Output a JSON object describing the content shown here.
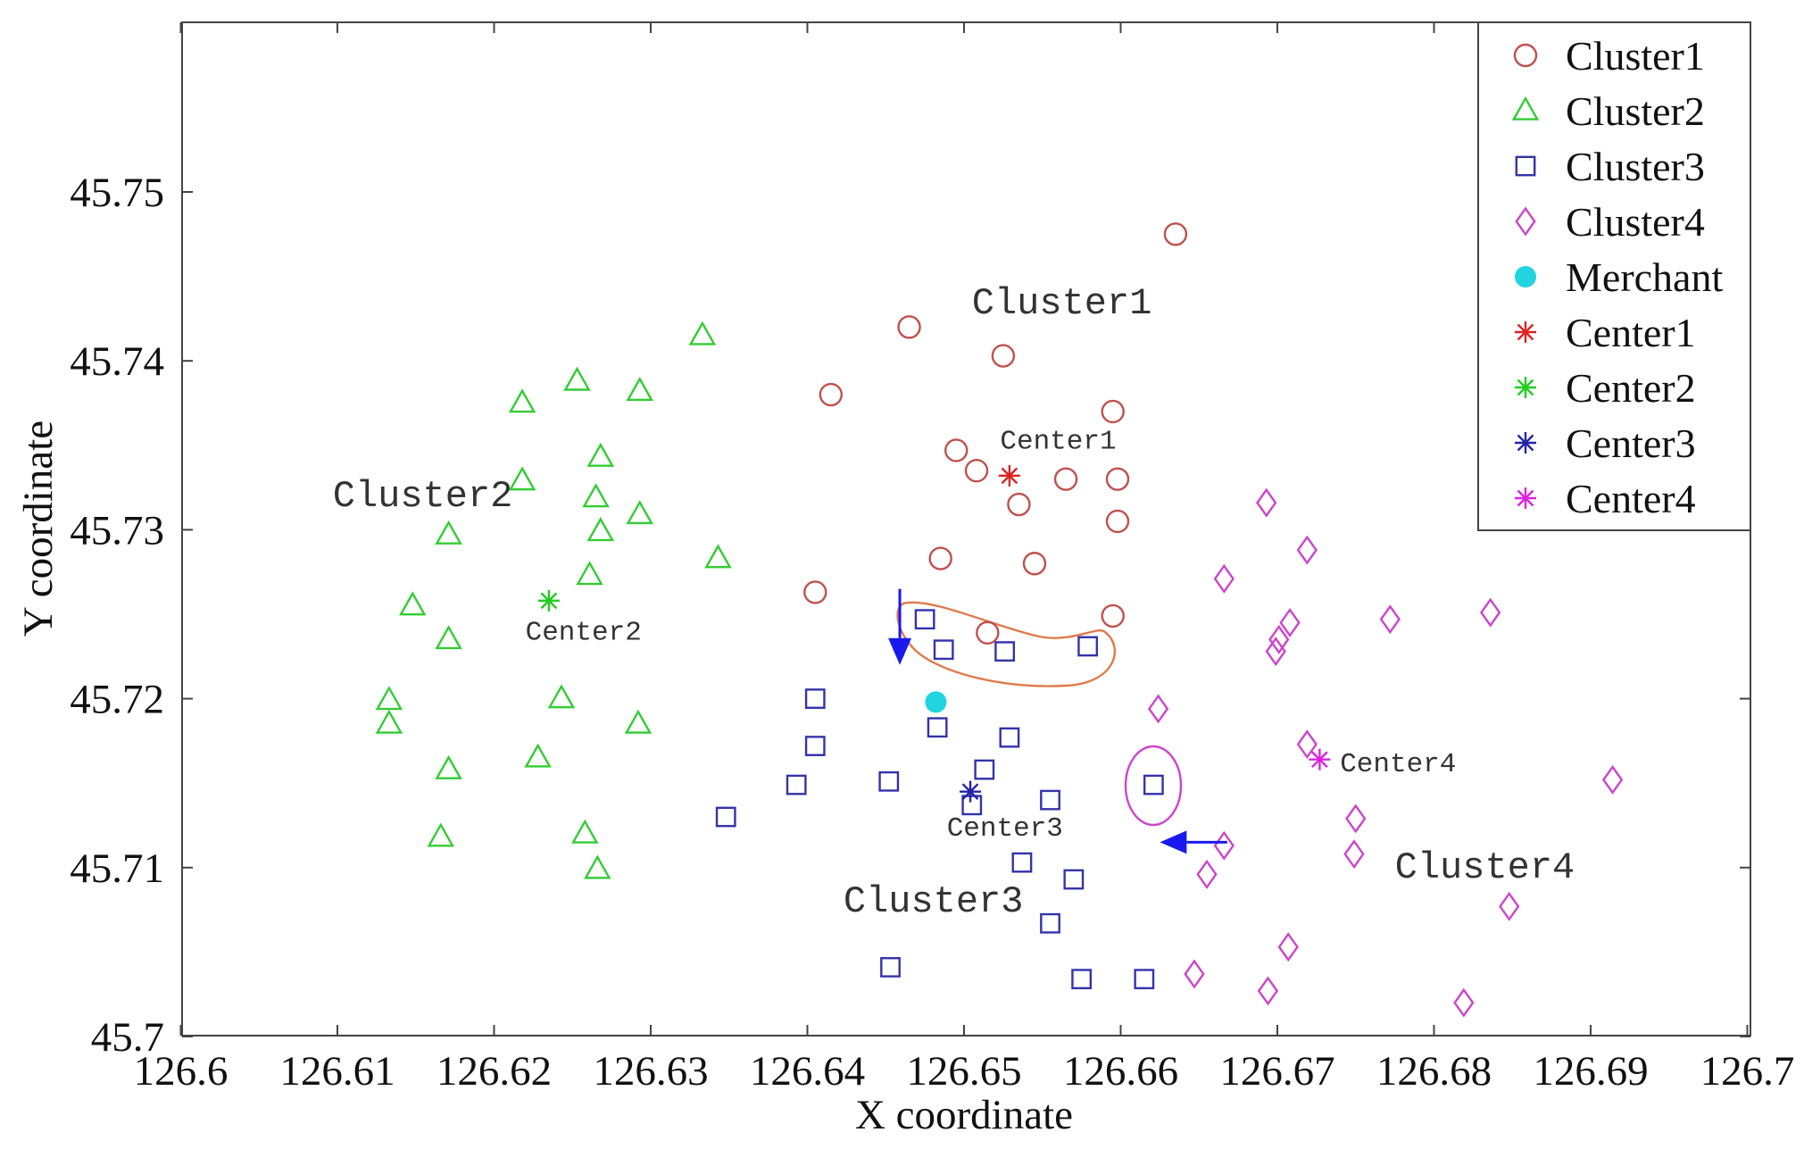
{
  "chart_data": {
    "type": "scatter",
    "title": "",
    "xlabel": "X coordinate",
    "ylabel": "Y coordinate",
    "xlim": [
      126.6,
      126.7
    ],
    "ylim": [
      45.7,
      45.76
    ],
    "xticks": [
      126.6,
      126.61,
      126.62,
      126.63,
      126.64,
      126.65,
      126.66,
      126.67,
      126.68,
      126.69,
      126.7
    ],
    "xtick_labels": [
      "126.6",
      "126.61",
      "126.62",
      "126.63",
      "126.64",
      "126.65",
      "126.66",
      "126.67",
      "126.68",
      "126.69",
      "126.7"
    ],
    "yticks": [
      45.7,
      45.71,
      45.72,
      45.73,
      45.74,
      45.75
    ],
    "ytick_labels": [
      "45.7",
      "45.71",
      "45.72",
      "45.73",
      "45.74",
      "45.75"
    ],
    "grid": false,
    "legend_position": "top-right",
    "series": [
      {
        "name": "Cluster1",
        "marker": "circle",
        "color": "#c0504d",
        "points": [
          [
            126.6635,
            45.7475
          ],
          [
            126.6465,
            45.742
          ],
          [
            126.6525,
            45.7403
          ],
          [
            126.6415,
            45.738
          ],
          [
            126.6595,
            45.737
          ],
          [
            126.6495,
            45.7347
          ],
          [
            126.6508,
            45.7335
          ],
          [
            126.6565,
            45.733
          ],
          [
            126.6598,
            45.733
          ],
          [
            126.6535,
            45.7315
          ],
          [
            126.6598,
            45.7305
          ],
          [
            126.6485,
            45.7283
          ],
          [
            126.6545,
            45.728
          ],
          [
            126.6405,
            45.7263
          ],
          [
            126.6595,
            45.7249
          ],
          [
            126.6515,
            45.7239
          ]
        ]
      },
      {
        "name": "Cluster2",
        "marker": "triangle",
        "color": "#33cc33",
        "points": [
          [
            126.6333,
            45.7415
          ],
          [
            126.6253,
            45.7388
          ],
          [
            126.6293,
            45.7382
          ],
          [
            126.6218,
            45.7375
          ],
          [
            126.6268,
            45.7343
          ],
          [
            126.6218,
            45.7329
          ],
          [
            126.6265,
            45.7319
          ],
          [
            126.6293,
            45.7309
          ],
          [
            126.6268,
            45.7299
          ],
          [
            126.6171,
            45.7297
          ],
          [
            126.6343,
            45.7283
          ],
          [
            126.6261,
            45.7273
          ],
          [
            126.6148,
            45.7255
          ],
          [
            126.6171,
            45.7235
          ],
          [
            126.6133,
            45.7199
          ],
          [
            126.6243,
            45.72
          ],
          [
            126.6133,
            45.7185
          ],
          [
            126.6292,
            45.7185
          ],
          [
            126.6228,
            45.7165
          ],
          [
            126.6171,
            45.7158
          ],
          [
            126.6258,
            45.712
          ],
          [
            126.6166,
            45.7118
          ],
          [
            126.6266,
            45.7099
          ]
        ]
      },
      {
        "name": "Cluster3",
        "marker": "square",
        "color": "#3333aa",
        "points": [
          [
            126.6475,
            45.7247
          ],
          [
            126.6487,
            45.7229
          ],
          [
            126.6526,
            45.7228
          ],
          [
            126.6579,
            45.7231
          ],
          [
            126.6405,
            45.72
          ],
          [
            126.6483,
            45.7183
          ],
          [
            126.6529,
            45.7177
          ],
          [
            126.6405,
            45.7172
          ],
          [
            126.6513,
            45.7158
          ],
          [
            126.6393,
            45.7149
          ],
          [
            126.6452,
            45.7151
          ],
          [
            126.6621,
            45.7149
          ],
          [
            126.6555,
            45.714
          ],
          [
            126.6505,
            45.7137
          ],
          [
            126.6348,
            45.713
          ],
          [
            126.6537,
            45.7103
          ],
          [
            126.657,
            45.7093
          ],
          [
            126.6555,
            45.7067
          ],
          [
            126.6453,
            45.7041
          ],
          [
            126.6575,
            45.7034
          ],
          [
            126.6615,
            45.7034
          ]
        ]
      },
      {
        "name": "Cluster4",
        "marker": "diamond",
        "color": "#cc44cc",
        "points": [
          [
            126.6693,
            45.7316
          ],
          [
            126.6719,
            45.7288
          ],
          [
            126.6666,
            45.7271
          ],
          [
            126.6708,
            45.7245
          ],
          [
            126.6772,
            45.7247
          ],
          [
            126.6836,
            45.7251
          ],
          [
            126.6701,
            45.7235
          ],
          [
            126.6699,
            45.7228
          ],
          [
            126.6624,
            45.7194
          ],
          [
            126.6719,
            45.7173
          ],
          [
            126.6914,
            45.7152
          ],
          [
            126.675,
            45.7129
          ],
          [
            126.6666,
            45.7113
          ],
          [
            126.6749,
            45.7108
          ],
          [
            126.6655,
            45.7096
          ],
          [
            126.6848,
            45.7077
          ],
          [
            126.6707,
            45.7053
          ],
          [
            126.6647,
            45.7037
          ],
          [
            126.6694,
            45.7027
          ],
          [
            126.6819,
            45.702
          ]
        ]
      },
      {
        "name": "Merchant",
        "marker": "filled-circle",
        "color": "#22d3e0",
        "points": [
          [
            126.6482,
            45.7198
          ]
        ]
      },
      {
        "name": "Center1",
        "marker": "asterisk",
        "color": "#dd2222",
        "points": [
          [
            126.6529,
            45.7332
          ]
        ]
      },
      {
        "name": "Center2",
        "marker": "asterisk",
        "color": "#22cc22",
        "points": [
          [
            126.6235,
            45.7258
          ]
        ]
      },
      {
        "name": "Center3",
        "marker": "asterisk",
        "color": "#2222aa",
        "points": [
          [
            126.6504,
            45.7145
          ]
        ]
      },
      {
        "name": "Center4",
        "marker": "asterisk",
        "color": "#dd22dd",
        "points": [
          [
            126.6727,
            45.7164
          ]
        ]
      }
    ],
    "annotations": [
      {
        "text": "Cluster1",
        "x": 126.6505,
        "y": 45.7428,
        "size": "large"
      },
      {
        "text": "Cluster2",
        "x": 126.6097,
        "y": 45.7314,
        "size": "large"
      },
      {
        "text": "Cluster3",
        "x": 126.6423,
        "y": 45.7074,
        "size": "large"
      },
      {
        "text": "Cluster4",
        "x": 126.6775,
        "y": 45.7094,
        "size": "large"
      },
      {
        "text": "Center1",
        "x": 126.6523,
        "y": 45.7348,
        "size": "small"
      },
      {
        "text": "Center2",
        "x": 126.622,
        "y": 45.7235,
        "size": "small"
      },
      {
        "text": "Center3",
        "x": 126.6489,
        "y": 45.7119,
        "size": "small"
      },
      {
        "text": "Center4",
        "x": 126.674,
        "y": 45.7157,
        "size": "small"
      }
    ],
    "arrows": [
      {
        "from": [
          126.6459,
          45.7265
        ],
        "to": [
          126.6459,
          45.722
        ],
        "color": "#1a1aee"
      },
      {
        "from": [
          126.6668,
          45.7115
        ],
        "to": [
          126.6625,
          45.7115
        ],
        "color": "#1a1aee"
      }
    ],
    "highlight_shapes": [
      {
        "kind": "loop",
        "color": "#e07a4a",
        "around": "Cluster3 points near y=45.723"
      },
      {
        "kind": "ellipse",
        "color": "#cc44cc",
        "around": "Cluster3 point at (126.6621, 45.7149)"
      }
    ]
  }
}
